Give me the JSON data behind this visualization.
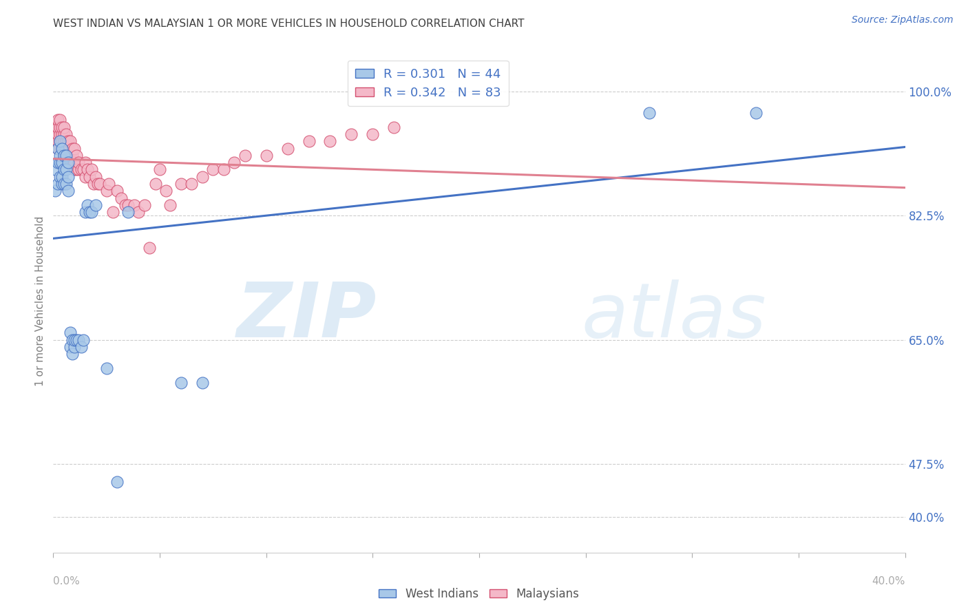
{
  "title": "WEST INDIAN VS MALAYSIAN 1 OR MORE VEHICLES IN HOUSEHOLD CORRELATION CHART",
  "source": "Source: ZipAtlas.com",
  "ylabel": "1 or more Vehicles in Household",
  "ytick_values": [
    0.4,
    0.475,
    0.65,
    0.825,
    1.0
  ],
  "ytick_labels": [
    "40.0%",
    "47.5%",
    "65.0%",
    "82.5%",
    "100.0%"
  ],
  "xlim": [
    0.0,
    0.4
  ],
  "ylim": [
    0.35,
    1.06
  ],
  "west_indian_color": "#a8c8e8",
  "west_indian_edge": "#4472c4",
  "malaysian_color": "#f4b8c8",
  "malaysian_edge": "#d45070",
  "line_west_indian_color": "#4472c4",
  "line_malaysian_color": "#e08090",
  "title_color": "#404040",
  "source_color": "#4472c4",
  "axis_label_color": "#808080",
  "ytick_color": "#4472c4",
  "xtick_color": "#aaaaaa",
  "grid_color": "#cccccc",
  "background_color": "#ffffff",
  "watermark_zip_color": "#c8dff0",
  "watermark_atlas_color": "#c8dff0",
  "legend_label_color": "#4472c4",
  "bottom_legend_color": "#555555",
  "west_indians_x": [
    0.001,
    0.001,
    0.002,
    0.002,
    0.002,
    0.003,
    0.003,
    0.003,
    0.003,
    0.004,
    0.004,
    0.004,
    0.004,
    0.005,
    0.005,
    0.005,
    0.006,
    0.006,
    0.006,
    0.007,
    0.007,
    0.007,
    0.008,
    0.008,
    0.009,
    0.009,
    0.01,
    0.01,
    0.011,
    0.012,
    0.013,
    0.014,
    0.015,
    0.016,
    0.017,
    0.018,
    0.02,
    0.025,
    0.03,
    0.035,
    0.06,
    0.07,
    0.28,
    0.33
  ],
  "west_indians_y": [
    0.86,
    0.89,
    0.87,
    0.9,
    0.92,
    0.88,
    0.9,
    0.91,
    0.93,
    0.87,
    0.88,
    0.9,
    0.92,
    0.87,
    0.89,
    0.91,
    0.87,
    0.89,
    0.91,
    0.86,
    0.88,
    0.9,
    0.64,
    0.66,
    0.63,
    0.65,
    0.64,
    0.65,
    0.65,
    0.65,
    0.64,
    0.65,
    0.83,
    0.84,
    0.83,
    0.83,
    0.84,
    0.61,
    0.45,
    0.83,
    0.59,
    0.59,
    0.97,
    0.97
  ],
  "malaysians_x": [
    0.001,
    0.001,
    0.001,
    0.001,
    0.002,
    0.002,
    0.002,
    0.002,
    0.002,
    0.003,
    0.003,
    0.003,
    0.003,
    0.003,
    0.004,
    0.004,
    0.004,
    0.004,
    0.005,
    0.005,
    0.005,
    0.005,
    0.005,
    0.006,
    0.006,
    0.006,
    0.006,
    0.007,
    0.007,
    0.007,
    0.008,
    0.008,
    0.008,
    0.009,
    0.009,
    0.009,
    0.01,
    0.01,
    0.01,
    0.011,
    0.011,
    0.012,
    0.012,
    0.013,
    0.014,
    0.015,
    0.015,
    0.016,
    0.017,
    0.018,
    0.019,
    0.02,
    0.021,
    0.022,
    0.025,
    0.026,
    0.028,
    0.03,
    0.032,
    0.034,
    0.035,
    0.038,
    0.04,
    0.043,
    0.045,
    0.048,
    0.05,
    0.053,
    0.055,
    0.06,
    0.065,
    0.07,
    0.075,
    0.08,
    0.085,
    0.09,
    0.1,
    0.11,
    0.12,
    0.13,
    0.14,
    0.15,
    0.16
  ],
  "malaysians_y": [
    0.93,
    0.93,
    0.94,
    0.95,
    0.92,
    0.93,
    0.94,
    0.95,
    0.96,
    0.92,
    0.93,
    0.94,
    0.95,
    0.96,
    0.92,
    0.93,
    0.94,
    0.95,
    0.91,
    0.92,
    0.93,
    0.94,
    0.95,
    0.91,
    0.92,
    0.93,
    0.94,
    0.9,
    0.92,
    0.93,
    0.9,
    0.91,
    0.93,
    0.9,
    0.91,
    0.92,
    0.89,
    0.9,
    0.92,
    0.89,
    0.91,
    0.89,
    0.9,
    0.89,
    0.89,
    0.88,
    0.9,
    0.89,
    0.88,
    0.89,
    0.87,
    0.88,
    0.87,
    0.87,
    0.86,
    0.87,
    0.83,
    0.86,
    0.85,
    0.84,
    0.84,
    0.84,
    0.83,
    0.84,
    0.78,
    0.87,
    0.89,
    0.86,
    0.84,
    0.87,
    0.87,
    0.88,
    0.89,
    0.89,
    0.9,
    0.91,
    0.91,
    0.92,
    0.93,
    0.93,
    0.94,
    0.94,
    0.95
  ]
}
